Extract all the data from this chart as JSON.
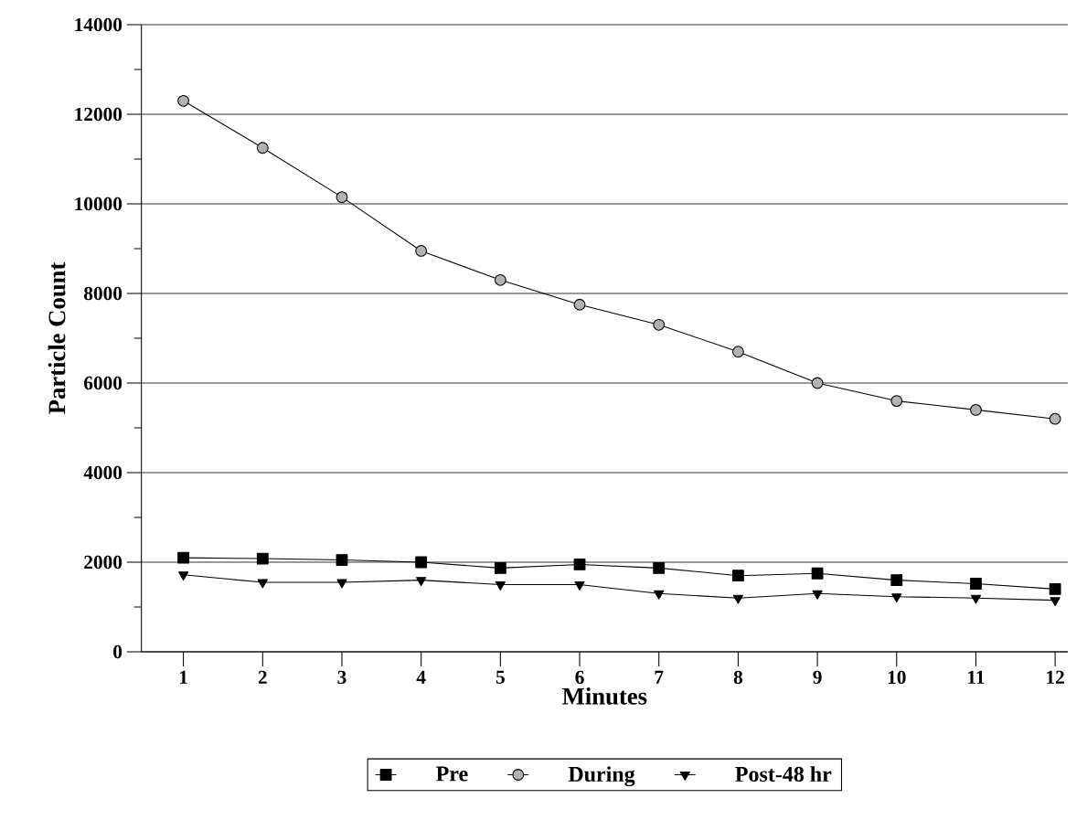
{
  "chart_data": {
    "type": "line",
    "xlabel": "Minutes",
    "ylabel": "Particle Count",
    "categories": [
      "1",
      "2",
      "3",
      "4",
      "5",
      "6",
      "7",
      "8",
      "9",
      "10",
      "11",
      "12"
    ],
    "series": [
      {
        "name": "Pre",
        "color": "#000000",
        "marker": "square",
        "values": [
          2100,
          2080,
          2050,
          2000,
          1870,
          1950,
          1870,
          1700,
          1750,
          1600,
          1520,
          1400
        ]
      },
      {
        "name": "During",
        "color": "#000000",
        "marker": "circle",
        "values": [
          12300,
          11250,
          10150,
          8950,
          8300,
          7750,
          7300,
          6700,
          6000,
          5600,
          5400,
          5200
        ]
      },
      {
        "name": "Post-48 hr",
        "color": "#000000",
        "marker": "triangle",
        "values": [
          1720,
          1550,
          1550,
          1600,
          1500,
          1500,
          1300,
          1200,
          1300,
          1230,
          1200,
          1150
        ]
      }
    ],
    "ylim": [
      0,
      14000
    ],
    "yticks": [
      0,
      {
        "value": 1000,
        "label": null
      },
      2000,
      {
        "value": 3000,
        "label": null
      },
      4000,
      {
        "value": 5000,
        "label": null
      },
      6000,
      {
        "value": 7000,
        "label": null
      },
      8000,
      {
        "value": 9000,
        "label": null
      },
      10000,
      {
        "value": 11000,
        "label": null
      },
      12000,
      {
        "value": 13000,
        "label": null
      },
      14000
    ],
    "grid": "y",
    "legend": "bottom",
    "line_style": "solid"
  }
}
